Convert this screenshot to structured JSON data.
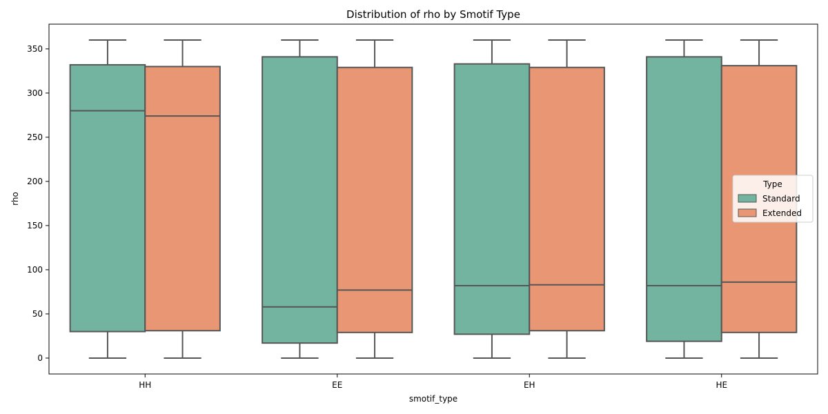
{
  "chart_data": {
    "type": "box",
    "title": "Distribution of rho by Smotif Type",
    "xlabel": "smotif_type",
    "ylabel": "rho",
    "categories": [
      "HH",
      "EE",
      "EH",
      "HE"
    ],
    "ylim": [
      -18,
      378
    ],
    "yticks": [
      0,
      50,
      100,
      150,
      200,
      250,
      300,
      350
    ],
    "grid": false,
    "legend": {
      "title": "Type",
      "position": "center-right"
    },
    "series": [
      {
        "name": "Standard",
        "color": "#72b4a0",
        "boxes": [
          {
            "min": 0,
            "q1": 30,
            "median": 280,
            "q3": 332,
            "max": 360
          },
          {
            "min": 0,
            "q1": 17,
            "median": 58,
            "q3": 341,
            "max": 360
          },
          {
            "min": 0,
            "q1": 27,
            "median": 82,
            "q3": 333,
            "max": 360
          },
          {
            "min": 0,
            "q1": 19,
            "median": 82,
            "q3": 341,
            "max": 360
          }
        ]
      },
      {
        "name": "Extended",
        "color": "#e99675",
        "boxes": [
          {
            "min": 0,
            "q1": 31,
            "median": 274,
            "q3": 330,
            "max": 360
          },
          {
            "min": 0,
            "q1": 29,
            "median": 77,
            "q3": 329,
            "max": 360
          },
          {
            "min": 0,
            "q1": 31,
            "median": 83,
            "q3": 329,
            "max": 360
          },
          {
            "min": 0,
            "q1": 29,
            "median": 86,
            "q3": 331,
            "max": 360
          }
        ]
      }
    ]
  }
}
